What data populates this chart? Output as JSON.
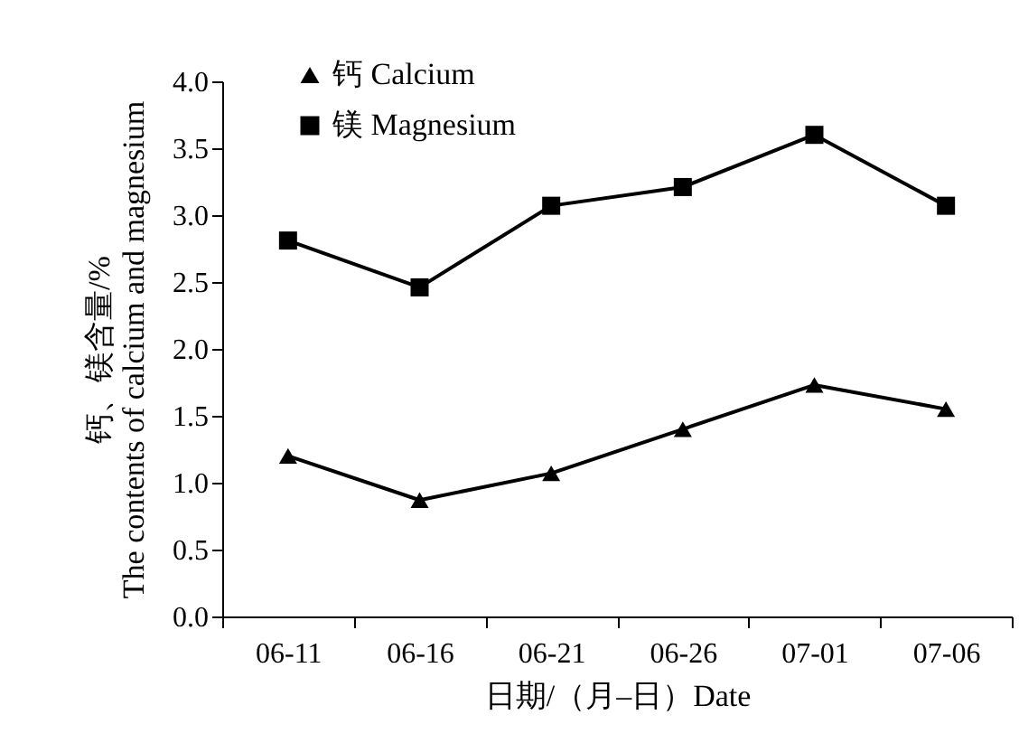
{
  "chart_data": {
    "type": "line",
    "xlabel": "日期/（月–日）Date",
    "ylabel": "钙、镁含量/%\nThe contents of calcium and magnesium",
    "categories": [
      "06-11",
      "06-16",
      "06-21",
      "06-26",
      "07-01",
      "07-06"
    ],
    "series": [
      {
        "name": "钙  Calcium",
        "color": "#000000",
        "marker": "triangle",
        "values": [
          1.2,
          0.87,
          1.07,
          1.4,
          1.73,
          1.55
        ]
      },
      {
        "name": "镁  Magnesium",
        "color": "#000000",
        "marker": "square",
        "values": [
          2.81,
          2.46,
          3.07,
          3.21,
          3.6,
          3.07
        ]
      }
    ],
    "ylim": [
      0,
      4
    ],
    "yticks": [
      {
        "value": 0,
        "label": "0.0"
      },
      0.5,
      {
        "value": 1,
        "label": "1.0"
      },
      1.5,
      {
        "value": 2,
        "label": "2.0"
      },
      2.5,
      {
        "value": 3,
        "label": "3.0"
      },
      3.5,
      {
        "value": 4,
        "label": "4.0"
      }
    ],
    "grid": false,
    "legend": "top left",
    "line_style": "solid"
  }
}
